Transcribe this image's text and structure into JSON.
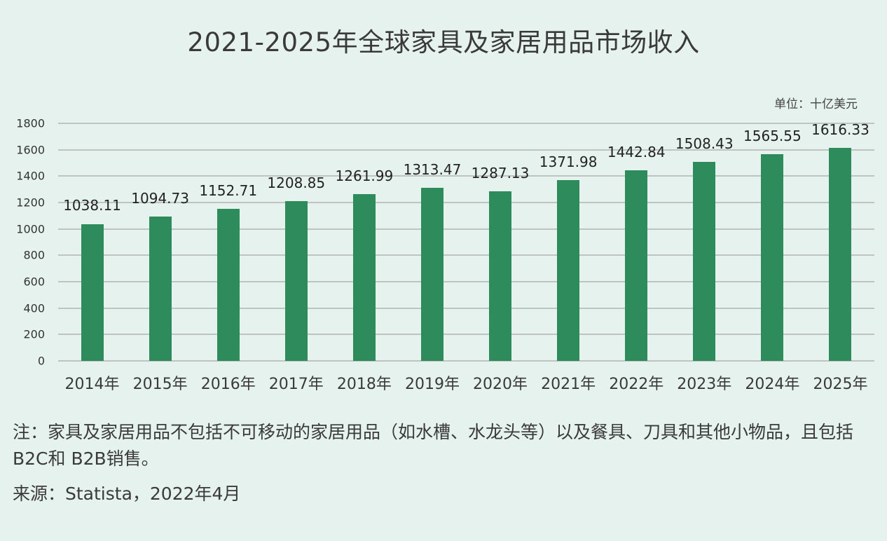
{
  "title": "2021-2025年全球家具及家居用品市场收入",
  "unit": "单位：十亿美元",
  "note": "注：家具及家居用品不包括不可移动的家居用品（如水槽、水龙头等）以及餐具、刀具和其他小物品，且包括B2C和 B2B销售。",
  "source": "来源：Statista，2022年4月",
  "colors": {
    "bar": "#2e8b5c",
    "background": "#e6f2ee",
    "grid": "#bfc4c2"
  },
  "chart_data": {
    "type": "bar",
    "title": "2021-2025年全球家具及家居用品市场收入",
    "xlabel": "",
    "ylabel": "十亿美元",
    "ylim": [
      0,
      1800
    ],
    "yticks": [
      0,
      200,
      400,
      600,
      800,
      1000,
      1200,
      1400,
      1600,
      1800
    ],
    "grid": true,
    "legend": null,
    "categories": [
      "2014年",
      "2015年",
      "2016年",
      "2017年",
      "2018年",
      "2019年",
      "2020年",
      "2021年",
      "2022年",
      "2023年",
      "2024年",
      "2025年"
    ],
    "values": [
      1038.11,
      1094.73,
      1152.71,
      1208.85,
      1261.99,
      1313.47,
      1287.13,
      1371.98,
      1442.84,
      1508.43,
      1565.55,
      1616.33
    ],
    "labels": [
      "1038.11",
      "1094.73",
      "1152.71",
      "1208.85",
      "1261.99",
      "1313.47",
      "1287.13",
      "1371.98",
      "1442.84",
      "1508.43",
      "1565.55",
      "1616.33"
    ],
    "annotations": [
      "单位：十亿美元"
    ]
  }
}
